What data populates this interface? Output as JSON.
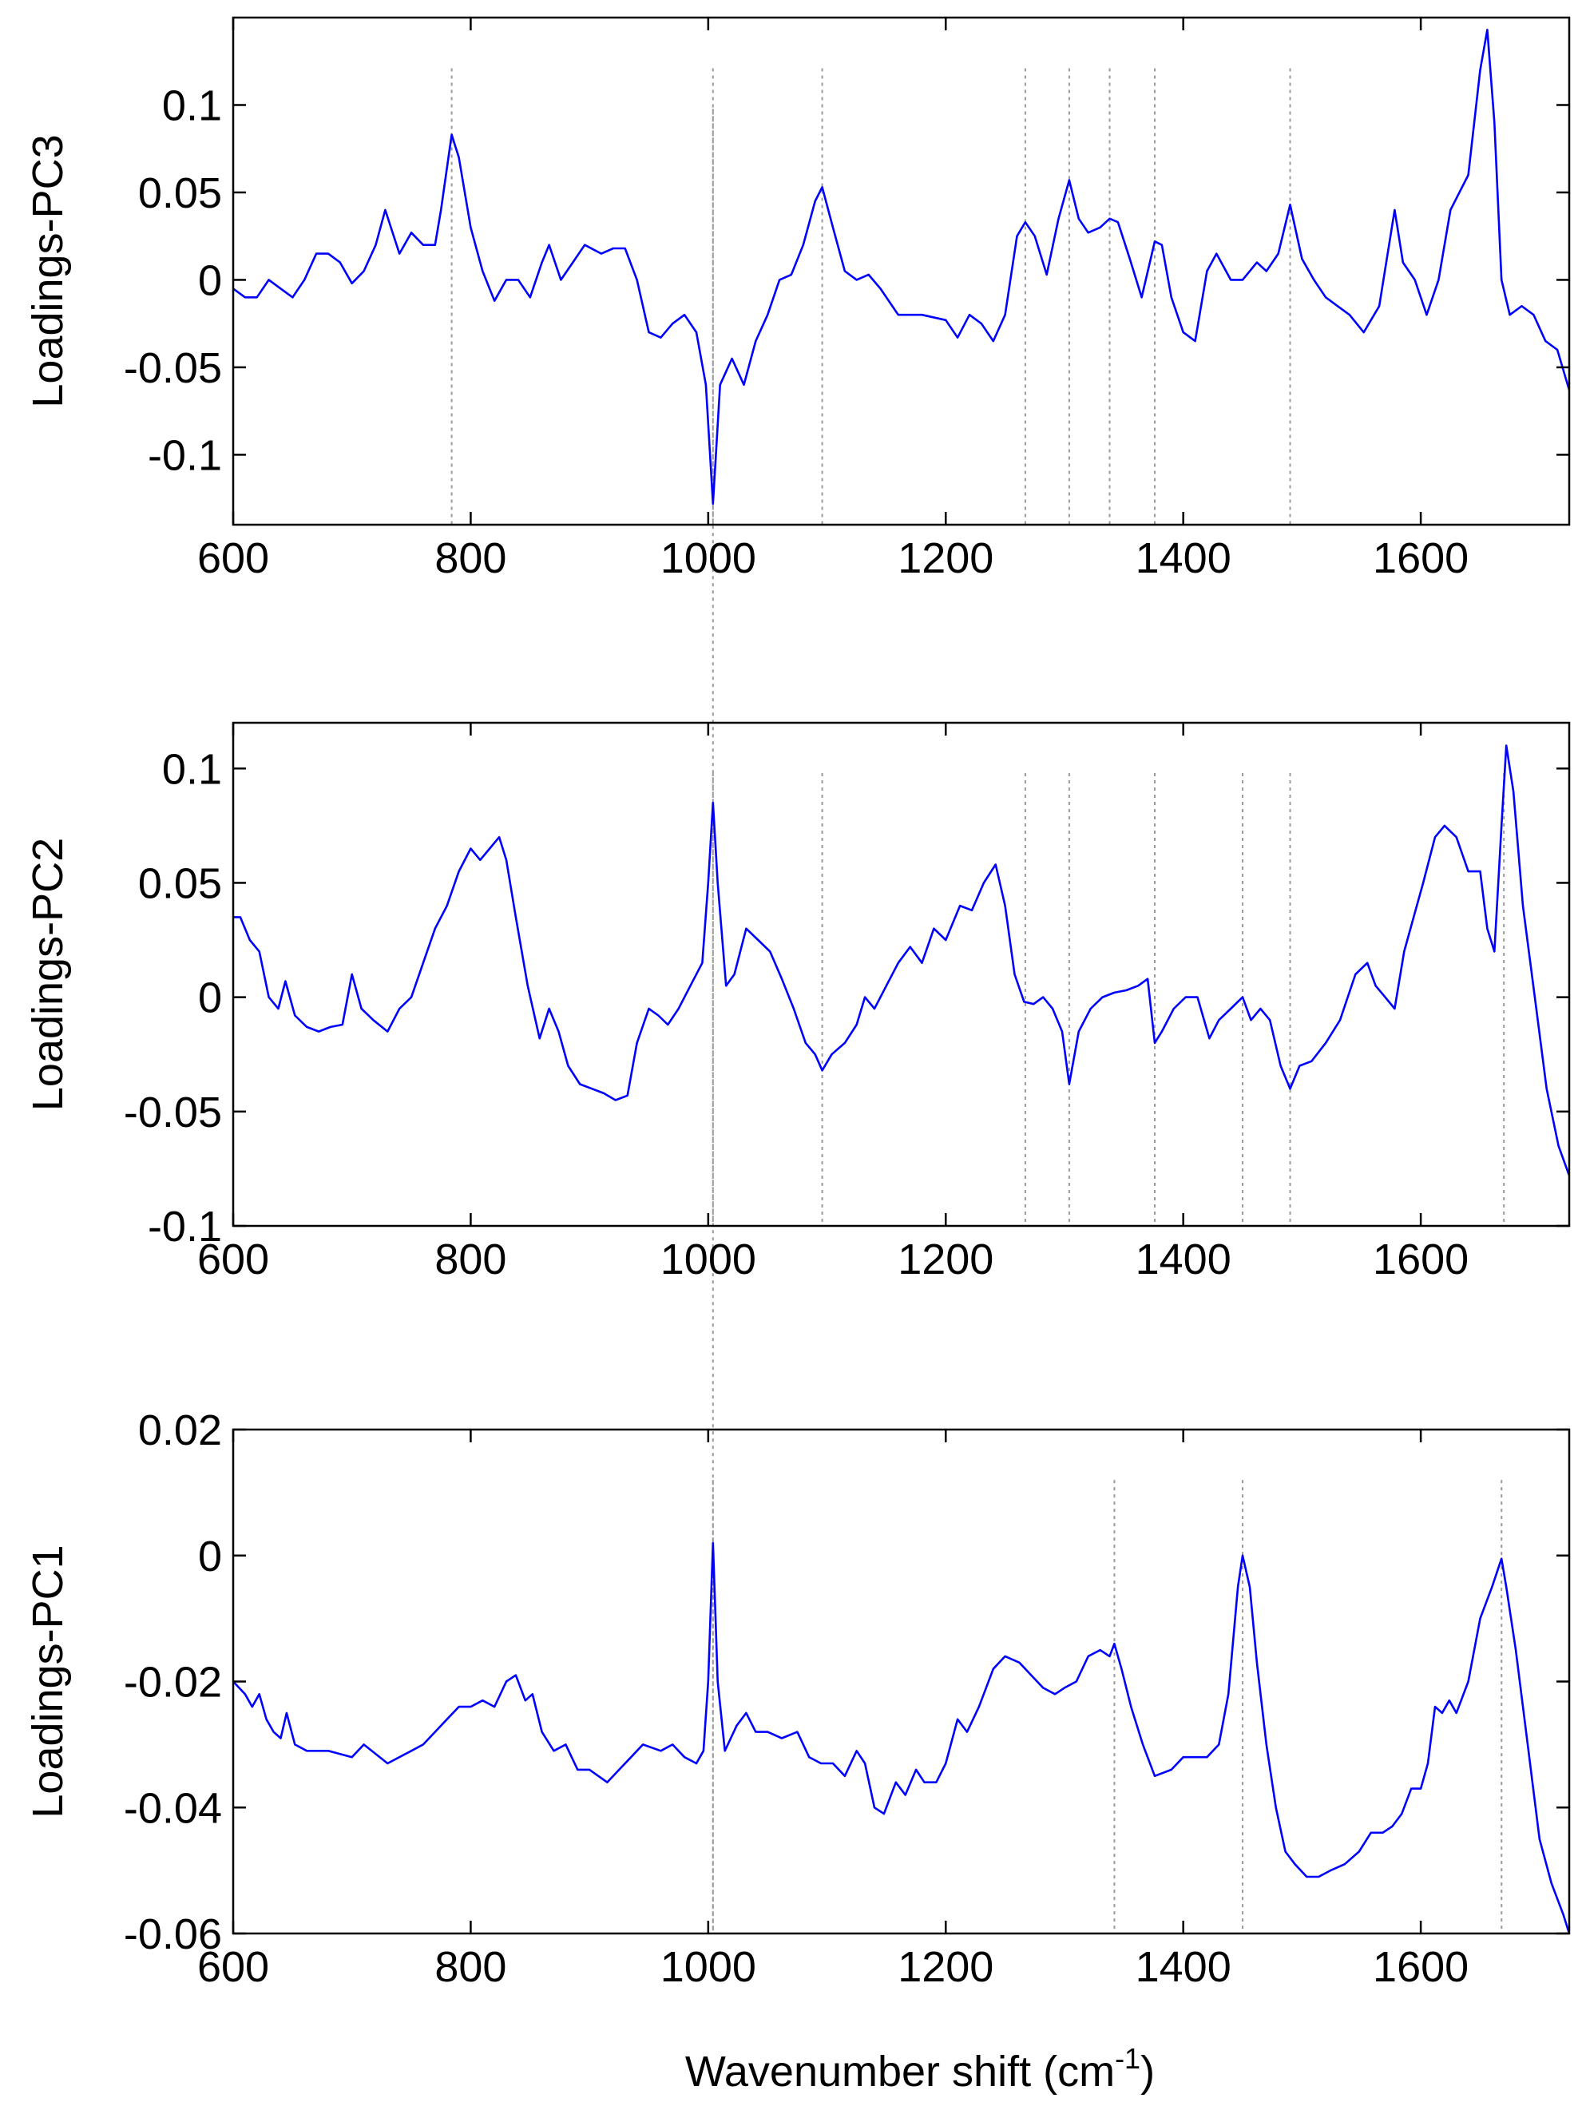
{
  "chart_data": [
    {
      "type": "line",
      "ylabel": "Loadings-PC3",
      "xlabel": "",
      "xlim": [
        600,
        1725
      ],
      "ylim": [
        -0.14,
        0.15
      ],
      "xticks": [
        600,
        800,
        1000,
        1200,
        1400,
        1600
      ],
      "xtick_labels": [
        "600",
        "800",
        "1000",
        "1200",
        "1400",
        "1600"
      ],
      "yticks": [
        0.1,
        0.05,
        0,
        -0.05,
        -0.1
      ],
      "ytick_labels": [
        "0.1",
        "0.05",
        "0",
        "-0.05",
        "-0.1"
      ],
      "grid": false,
      "series_color": "#0000ff",
      "marker_lines": [
        784,
        1004,
        1096,
        1267,
        1304,
        1338,
        1376,
        1490
      ],
      "series": [
        {
          "x": [
            600,
            610,
            620,
            630,
            640,
            650,
            660,
            670,
            680,
            690,
            700,
            710,
            720,
            728,
            740,
            750,
            760,
            770,
            775,
            784,
            790,
            800,
            810,
            820,
            830,
            840,
            850,
            860,
            866,
            876,
            886,
            896,
            910,
            920,
            930,
            940,
            950,
            960,
            970,
            980,
            990,
            998,
            1004,
            1010,
            1020,
            1030,
            1040,
            1050,
            1060,
            1070,
            1080,
            1090,
            1096,
            1105,
            1115,
            1125,
            1135,
            1145,
            1160,
            1180,
            1200,
            1210,
            1220,
            1230,
            1240,
            1250,
            1260,
            1267,
            1275,
            1285,
            1295,
            1304,
            1312,
            1320,
            1330,
            1338,
            1345,
            1355,
            1365,
            1376,
            1382,
            1390,
            1400,
            1410,
            1420,
            1428,
            1440,
            1450,
            1462,
            1470,
            1480,
            1490,
            1500,
            1510,
            1520,
            1530,
            1540,
            1552,
            1565,
            1578,
            1585,
            1595,
            1605,
            1615,
            1625,
            1640,
            1650,
            1656,
            1662,
            1668,
            1675,
            1685,
            1695,
            1705,
            1715,
            1725
          ],
          "y": [
            -0.005,
            -0.01,
            -0.01,
            0.0,
            -0.005,
            -0.01,
            0.0,
            0.015,
            0.015,
            0.01,
            -0.002,
            0.005,
            0.02,
            0.04,
            0.015,
            0.027,
            0.02,
            0.02,
            0.04,
            0.083,
            0.07,
            0.03,
            0.005,
            -0.012,
            0.0,
            0.0,
            -0.01,
            0.01,
            0.02,
            0.0,
            0.01,
            0.02,
            0.015,
            0.018,
            0.018,
            0.0,
            -0.03,
            -0.033,
            -0.025,
            -0.02,
            -0.03,
            -0.06,
            -0.128,
            -0.06,
            -0.045,
            -0.06,
            -0.035,
            -0.02,
            0.0,
            0.003,
            0.02,
            0.045,
            0.053,
            0.03,
            0.005,
            0.0,
            0.003,
            -0.005,
            -0.02,
            -0.02,
            -0.023,
            -0.033,
            -0.02,
            -0.025,
            -0.035,
            -0.02,
            0.025,
            0.033,
            0.025,
            0.003,
            0.035,
            0.057,
            0.035,
            0.027,
            0.03,
            0.035,
            0.033,
            0.012,
            -0.01,
            0.022,
            0.02,
            -0.01,
            -0.03,
            -0.035,
            0.005,
            0.015,
            0.0,
            0.0,
            0.01,
            0.005,
            0.015,
            0.043,
            0.012,
            0.0,
            -0.01,
            -0.015,
            -0.02,
            -0.03,
            -0.015,
            0.04,
            0.01,
            0.0,
            -0.02,
            0.0,
            0.04,
            0.06,
            0.12,
            0.143,
            0.09,
            0.0,
            -0.02,
            -0.015,
            -0.02,
            -0.035,
            -0.04,
            -0.063
          ]
        }
      ]
    },
    {
      "type": "line",
      "ylabel": "Loadings-PC2",
      "xlabel": "",
      "xlim": [
        600,
        1725
      ],
      "ylim": [
        -0.1,
        0.12
      ],
      "xticks": [
        600,
        800,
        1000,
        1200,
        1400,
        1600
      ],
      "xtick_labels": [
        "600",
        "800",
        "1000",
        "1200",
        "1400",
        "1600"
      ],
      "yticks": [
        0.1,
        0.05,
        0,
        -0.05,
        -0.1
      ],
      "ytick_labels": [
        "0.1",
        "0.05",
        "0",
        "-0.05",
        "-0.1"
      ],
      "grid": false,
      "series_color": "#0000ff",
      "marker_lines": [
        1004,
        1096,
        1267,
        1304,
        1376,
        1450,
        1490,
        1670
      ],
      "series": [
        {
          "x": [
            600,
            606,
            614,
            622,
            630,
            638,
            644,
            652,
            662,
            672,
            682,
            692,
            700,
            708,
            718,
            730,
            740,
            750,
            760,
            770,
            780,
            790,
            800,
            808,
            816,
            824,
            830,
            838,
            848,
            858,
            866,
            874,
            882,
            892,
            902,
            912,
            922,
            932,
            940,
            950,
            958,
            966,
            975,
            985,
            995,
            1000,
            1004,
            1008,
            1015,
            1022,
            1032,
            1042,
            1052,
            1062,
            1072,
            1082,
            1090,
            1096,
            1104,
            1115,
            1125,
            1132,
            1140,
            1150,
            1160,
            1170,
            1180,
            1190,
            1200,
            1212,
            1222,
            1232,
            1242,
            1250,
            1258,
            1266,
            1274,
            1282,
            1290,
            1298,
            1304,
            1312,
            1322,
            1332,
            1342,
            1352,
            1362,
            1370,
            1376,
            1382,
            1392,
            1402,
            1412,
            1422,
            1430,
            1440,
            1450,
            1457,
            1465,
            1473,
            1482,
            1490,
            1498,
            1508,
            1520,
            1532,
            1545,
            1555,
            1562,
            1570,
            1578,
            1586,
            1594,
            1602,
            1612,
            1620,
            1630,
            1640,
            1650,
            1656,
            1662,
            1668,
            1672,
            1678,
            1686,
            1696,
            1706,
            1716,
            1725
          ],
          "y": [
            0.035,
            0.035,
            0.025,
            0.02,
            0.0,
            -0.005,
            0.007,
            -0.008,
            -0.013,
            -0.015,
            -0.013,
            -0.012,
            0.01,
            -0.005,
            -0.01,
            -0.015,
            -0.005,
            0.0,
            0.015,
            0.03,
            0.04,
            0.055,
            0.065,
            0.06,
            0.065,
            0.07,
            0.06,
            0.035,
            0.005,
            -0.018,
            -0.005,
            -0.015,
            -0.03,
            -0.038,
            -0.04,
            -0.042,
            -0.045,
            -0.043,
            -0.02,
            -0.005,
            -0.008,
            -0.012,
            -0.005,
            0.005,
            0.015,
            0.05,
            0.085,
            0.05,
            0.005,
            0.01,
            0.03,
            0.025,
            0.02,
            0.008,
            -0.005,
            -0.02,
            -0.025,
            -0.032,
            -0.025,
            -0.02,
            -0.012,
            0.0,
            -0.005,
            0.005,
            0.015,
            0.022,
            0.015,
            0.03,
            0.025,
            0.04,
            0.038,
            0.05,
            0.058,
            0.04,
            0.01,
            -0.002,
            -0.003,
            0.0,
            -0.005,
            -0.015,
            -0.038,
            -0.015,
            -0.005,
            0.0,
            0.002,
            0.003,
            0.005,
            0.008,
            -0.02,
            -0.015,
            -0.005,
            0.0,
            0.0,
            -0.018,
            -0.01,
            -0.005,
            0.0,
            -0.01,
            -0.005,
            -0.01,
            -0.03,
            -0.04,
            -0.03,
            -0.028,
            -0.02,
            -0.01,
            0.01,
            0.015,
            0.005,
            0.0,
            -0.005,
            0.02,
            0.035,
            0.05,
            0.07,
            0.075,
            0.07,
            0.055,
            0.055,
            0.03,
            0.02,
            0.075,
            0.11,
            0.09,
            0.04,
            0.0,
            -0.04,
            -0.065,
            -0.078
          ]
        }
      ]
    },
    {
      "type": "line",
      "ylabel": "Loadings-PC1",
      "xlabel": "Wavenumber shift (cm-1)",
      "xlim": [
        600,
        1725
      ],
      "ylim": [
        -0.06,
        0.02
      ],
      "xticks": [
        600,
        800,
        1000,
        1200,
        1400,
        1600
      ],
      "xtick_labels": [
        "600",
        "800",
        "1000",
        "1200",
        "1400",
        "1600"
      ],
      "yticks": [
        0.02,
        0,
        -0.02,
        -0.04,
        -0.06
      ],
      "ytick_labels": [
        "0.02",
        "0",
        "-0.02",
        "-0.04",
        "-0.06"
      ],
      "grid": false,
      "series_color": "#0000ff",
      "marker_lines": [
        1004,
        1342,
        1450,
        1668
      ],
      "series": [
        {
          "x": [
            600,
            610,
            616,
            622,
            628,
            634,
            640,
            645,
            652,
            662,
            680,
            700,
            710,
            730,
            750,
            760,
            770,
            780,
            790,
            800,
            810,
            820,
            830,
            838,
            846,
            852,
            860,
            870,
            880,
            890,
            900,
            915,
            925,
            935,
            945,
            960,
            970,
            980,
            990,
            996,
            1000,
            1004,
            1008,
            1014,
            1024,
            1032,
            1040,
            1050,
            1062,
            1075,
            1085,
            1095,
            1105,
            1115,
            1125,
            1132,
            1140,
            1148,
            1158,
            1166,
            1175,
            1182,
            1192,
            1200,
            1210,
            1218,
            1228,
            1240,
            1250,
            1262,
            1272,
            1282,
            1292,
            1300,
            1310,
            1320,
            1330,
            1338,
            1342,
            1348,
            1356,
            1366,
            1376,
            1390,
            1400,
            1410,
            1420,
            1430,
            1438,
            1446,
            1450,
            1456,
            1462,
            1470,
            1478,
            1486,
            1494,
            1504,
            1514,
            1524,
            1536,
            1548,
            1558,
            1568,
            1576,
            1584,
            1592,
            1600,
            1606,
            1612,
            1618,
            1624,
            1630,
            1640,
            1650,
            1660,
            1668,
            1672,
            1680,
            1690,
            1700,
            1710,
            1720,
            1725
          ],
          "y": [
            -0.02,
            -0.022,
            -0.024,
            -0.022,
            -0.026,
            -0.028,
            -0.029,
            -0.025,
            -0.03,
            -0.031,
            -0.031,
            -0.032,
            -0.03,
            -0.033,
            -0.031,
            -0.03,
            -0.028,
            -0.026,
            -0.024,
            -0.024,
            -0.023,
            -0.024,
            -0.02,
            -0.019,
            -0.023,
            -0.022,
            -0.028,
            -0.031,
            -0.03,
            -0.034,
            -0.034,
            -0.036,
            -0.034,
            -0.032,
            -0.03,
            -0.031,
            -0.03,
            -0.032,
            -0.033,
            -0.031,
            -0.02,
            0.002,
            -0.02,
            -0.031,
            -0.027,
            -0.025,
            -0.028,
            -0.028,
            -0.029,
            -0.028,
            -0.032,
            -0.033,
            -0.033,
            -0.035,
            -0.031,
            -0.033,
            -0.04,
            -0.041,
            -0.036,
            -0.038,
            -0.034,
            -0.036,
            -0.036,
            -0.033,
            -0.026,
            -0.028,
            -0.024,
            -0.018,
            -0.016,
            -0.017,
            -0.019,
            -0.021,
            -0.022,
            -0.021,
            -0.02,
            -0.016,
            -0.015,
            -0.016,
            -0.014,
            -0.018,
            -0.024,
            -0.03,
            -0.035,
            -0.034,
            -0.032,
            -0.032,
            -0.032,
            -0.03,
            -0.022,
            -0.005,
            0.0,
            -0.005,
            -0.017,
            -0.03,
            -0.04,
            -0.047,
            -0.049,
            -0.051,
            -0.051,
            -0.05,
            -0.049,
            -0.047,
            -0.044,
            -0.044,
            -0.043,
            -0.041,
            -0.037,
            -0.037,
            -0.033,
            -0.024,
            -0.025,
            -0.023,
            -0.025,
            -0.02,
            -0.01,
            -0.005,
            -0.0005,
            -0.005,
            -0.015,
            -0.03,
            -0.045,
            -0.052,
            -0.057,
            -0.06
          ]
        }
      ]
    }
  ],
  "xlabel_shared": {
    "text": "Wavenumber shift (cm",
    "superscript": "-1",
    "suffix": ")"
  },
  "cross_panel_marker": 1004
}
